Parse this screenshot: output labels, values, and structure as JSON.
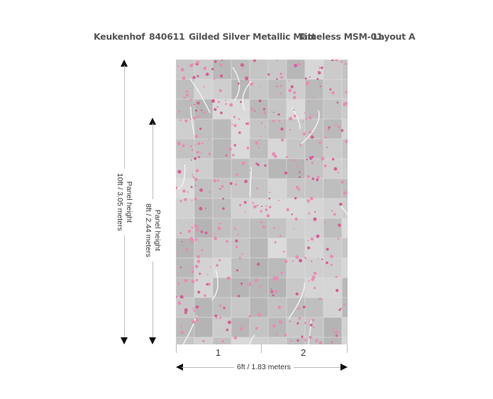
{
  "header": {
    "collection": "Keukenhof",
    "code": "840611",
    "finish": "Gilded Silver Metallic Matt",
    "series": "Timeless MSM-01",
    "layout": "Layout A"
  },
  "dimensions": {
    "panel_height_label": "Panel height",
    "height_10": "10ft / 3.05 meters",
    "height_8": "8ft / 2.44 meters",
    "width": "6ft  / 1.83 meters"
  },
  "panels": [
    "1",
    "2"
  ],
  "colors": {
    "background": "#c9c9c9",
    "blossom": "#e98bb5",
    "branch": "#f2f2f2",
    "text": "#555555"
  }
}
